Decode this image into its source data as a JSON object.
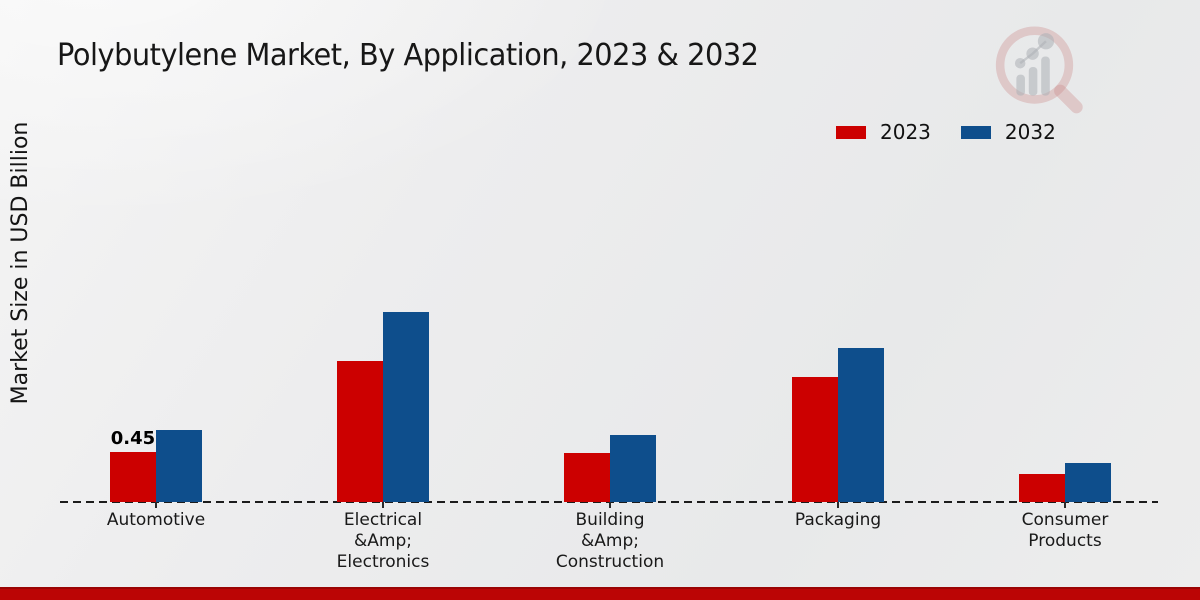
{
  "title": "Polybutylene Market, By Application, 2023 & 2032",
  "colors": {
    "series_2023": "#cc0000",
    "series_2032": "#0e4e8c",
    "footer_strip": "#bb0505",
    "background": "#ececed",
    "text": "#191919"
  },
  "branding": {
    "watermark_icon": "magnifier-bar-chart-logo"
  },
  "chart_data": {
    "type": "bar",
    "title": "Polybutylene Market, By Application, 2023 & 2032",
    "xlabel": "",
    "ylabel": "Market Size in USD Billion",
    "categories": [
      "Automotive",
      "Electrical\n&Amp;\nElectronics",
      "Building\n&Amp;\nConstruction",
      "Packaging",
      "Consumer\nProducts"
    ],
    "series": [
      {
        "name": "2023",
        "color": "#cc0000",
        "values": [
          0.45,
          1.27,
          0.44,
          1.13,
          0.25
        ],
        "data_labels": [
          "0.45",
          "",
          "",
          "",
          ""
        ]
      },
      {
        "name": "2032",
        "color": "#0e4e8c",
        "values": [
          0.65,
          1.71,
          0.6,
          1.39,
          0.35
        ],
        "data_labels": [
          "",
          "",
          "",
          "",
          ""
        ]
      }
    ],
    "ylim": [
      0,
      2.0
    ],
    "grid": false,
    "y_ticks_visible": false,
    "baseline_style": "dashed",
    "legend_position": "top-right"
  }
}
